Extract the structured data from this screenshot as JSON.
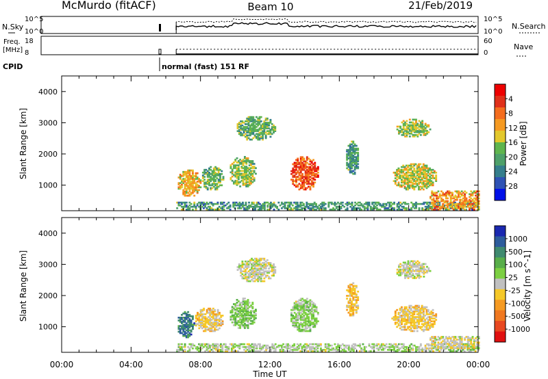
{
  "header": {
    "radar": "McMurdo (fitACF)",
    "beam": "Beam 10",
    "date": "21/Feb/2019"
  },
  "top_panels": {
    "nsky_label": "N.Sky",
    "nsky_ticks": [
      "10^5",
      "10^0"
    ],
    "nsearch_label": "N.Search",
    "nsearch_ticks": [
      "10^5",
      "10^0"
    ],
    "freq_label": "Freq.",
    "freq_unit": "[MHz]",
    "freq_ticks": [
      "18",
      "8"
    ],
    "nave_label": "Nave",
    "nave_ticks": [
      "60",
      "0"
    ],
    "cpid_label": "CPID",
    "cpid_text": "normal (fast) 151 RF"
  },
  "colors": {
    "power": [
      "#0010e8",
      "#2e52b4",
      "#357e8c",
      "#4ea06a",
      "#5fb54e",
      "#e3c82c",
      "#f59a22",
      "#f46d1e",
      "#e0301a",
      "#ee0000"
    ],
    "velocity": [
      "#1a28b0",
      "#2d5c9c",
      "#3f8a6f",
      "#58ae4a",
      "#7ccf42",
      "#c0c0c0",
      "#f5c828",
      "#f59a22",
      "#f07820",
      "#e84820",
      "#e01010"
    ]
  },
  "chart_data": [
    {
      "type": "heatmap",
      "name": "power-panel",
      "ylabel": "Slant Range [km]",
      "xlabel": "Time UT",
      "xlim": [
        0,
        24
      ],
      "ylim": [
        180,
        4500
      ],
      "xticks": [
        "00:00",
        "04:00",
        "08:00",
        "12:00",
        "16:00",
        "20:00",
        "00:00"
      ],
      "yticks": [
        1000,
        2000,
        3000,
        4000
      ],
      "colorbar": {
        "label": "Power [dB]",
        "ticks": [
          "4",
          "8",
          "12",
          "16",
          "20",
          "24",
          "28"
        ],
        "range": [
          0,
          30
        ]
      },
      "regions": [
        {
          "t0": 6.6,
          "t1": 24.0,
          "r0": 200,
          "r1": 450,
          "v": 10
        },
        {
          "t0": 6.6,
          "t1": 8.0,
          "r0": 600,
          "r1": 1500,
          "v": 18
        },
        {
          "t0": 8.0,
          "t1": 9.3,
          "r0": 800,
          "r1": 1600,
          "v": 12
        },
        {
          "t0": 9.6,
          "t1": 11.2,
          "r0": 900,
          "r1": 1900,
          "v": 14
        },
        {
          "t0": 10.0,
          "t1": 12.3,
          "r0": 2400,
          "r1": 3200,
          "v": 12
        },
        {
          "t0": 13.1,
          "t1": 14.8,
          "r0": 800,
          "r1": 1900,
          "v": 24
        },
        {
          "t0": 16.3,
          "t1": 17.1,
          "r0": 1300,
          "r1": 2400,
          "v": 10
        },
        {
          "t0": 19.2,
          "t1": 21.2,
          "r0": 2500,
          "r1": 3100,
          "v": 14
        },
        {
          "t0": 19.0,
          "t1": 21.6,
          "r0": 800,
          "r1": 1700,
          "v": 16
        },
        {
          "t0": 21.2,
          "t1": 24.0,
          "r0": 200,
          "r1": 800,
          "v": 20
        }
      ]
    },
    {
      "type": "heatmap",
      "name": "velocity-panel",
      "ylabel": "Slant Range [km]",
      "xlabel": "Time UT",
      "xlim": [
        0,
        24
      ],
      "ylim": [
        180,
        4500
      ],
      "xticks": [
        "00:00",
        "04:00",
        "08:00",
        "12:00",
        "16:00",
        "20:00",
        "00:00"
      ],
      "yticks": [
        1000,
        2000,
        3000,
        4000
      ],
      "colorbar": {
        "label": "Velocity [m s^-1]",
        "ticks": [
          "1000",
          "500",
          "100",
          "25",
          "-25",
          "-100",
          "-500",
          "-1000"
        ],
        "range": [
          -1000,
          1000
        ]
      },
      "regions": [
        {
          "t0": 6.6,
          "t1": 24.0,
          "r0": 200,
          "r1": 450,
          "v": 80
        },
        {
          "t0": 6.6,
          "t1": 7.6,
          "r0": 600,
          "r1": 1500,
          "v": 600
        },
        {
          "t0": 7.6,
          "t1": 9.3,
          "r0": 800,
          "r1": 1600,
          "v": -150
        },
        {
          "t0": 9.6,
          "t1": 11.2,
          "r0": 900,
          "r1": 1900,
          "v": 200
        },
        {
          "t0": 10.0,
          "t1": 12.3,
          "r0": 2400,
          "r1": 3200,
          "v": 0
        },
        {
          "t0": 13.1,
          "t1": 14.8,
          "r0": 800,
          "r1": 1900,
          "v": 150
        },
        {
          "t0": 16.3,
          "t1": 17.1,
          "r0": 1300,
          "r1": 2400,
          "v": -200
        },
        {
          "t0": 19.2,
          "t1": 21.2,
          "r0": 2500,
          "r1": 3100,
          "v": 0
        },
        {
          "t0": 19.0,
          "t1": 21.6,
          "r0": 800,
          "r1": 1700,
          "v": -150
        },
        {
          "t0": 21.2,
          "t1": 24.0,
          "r0": 300,
          "r1": 700,
          "v": -60
        }
      ]
    }
  ]
}
